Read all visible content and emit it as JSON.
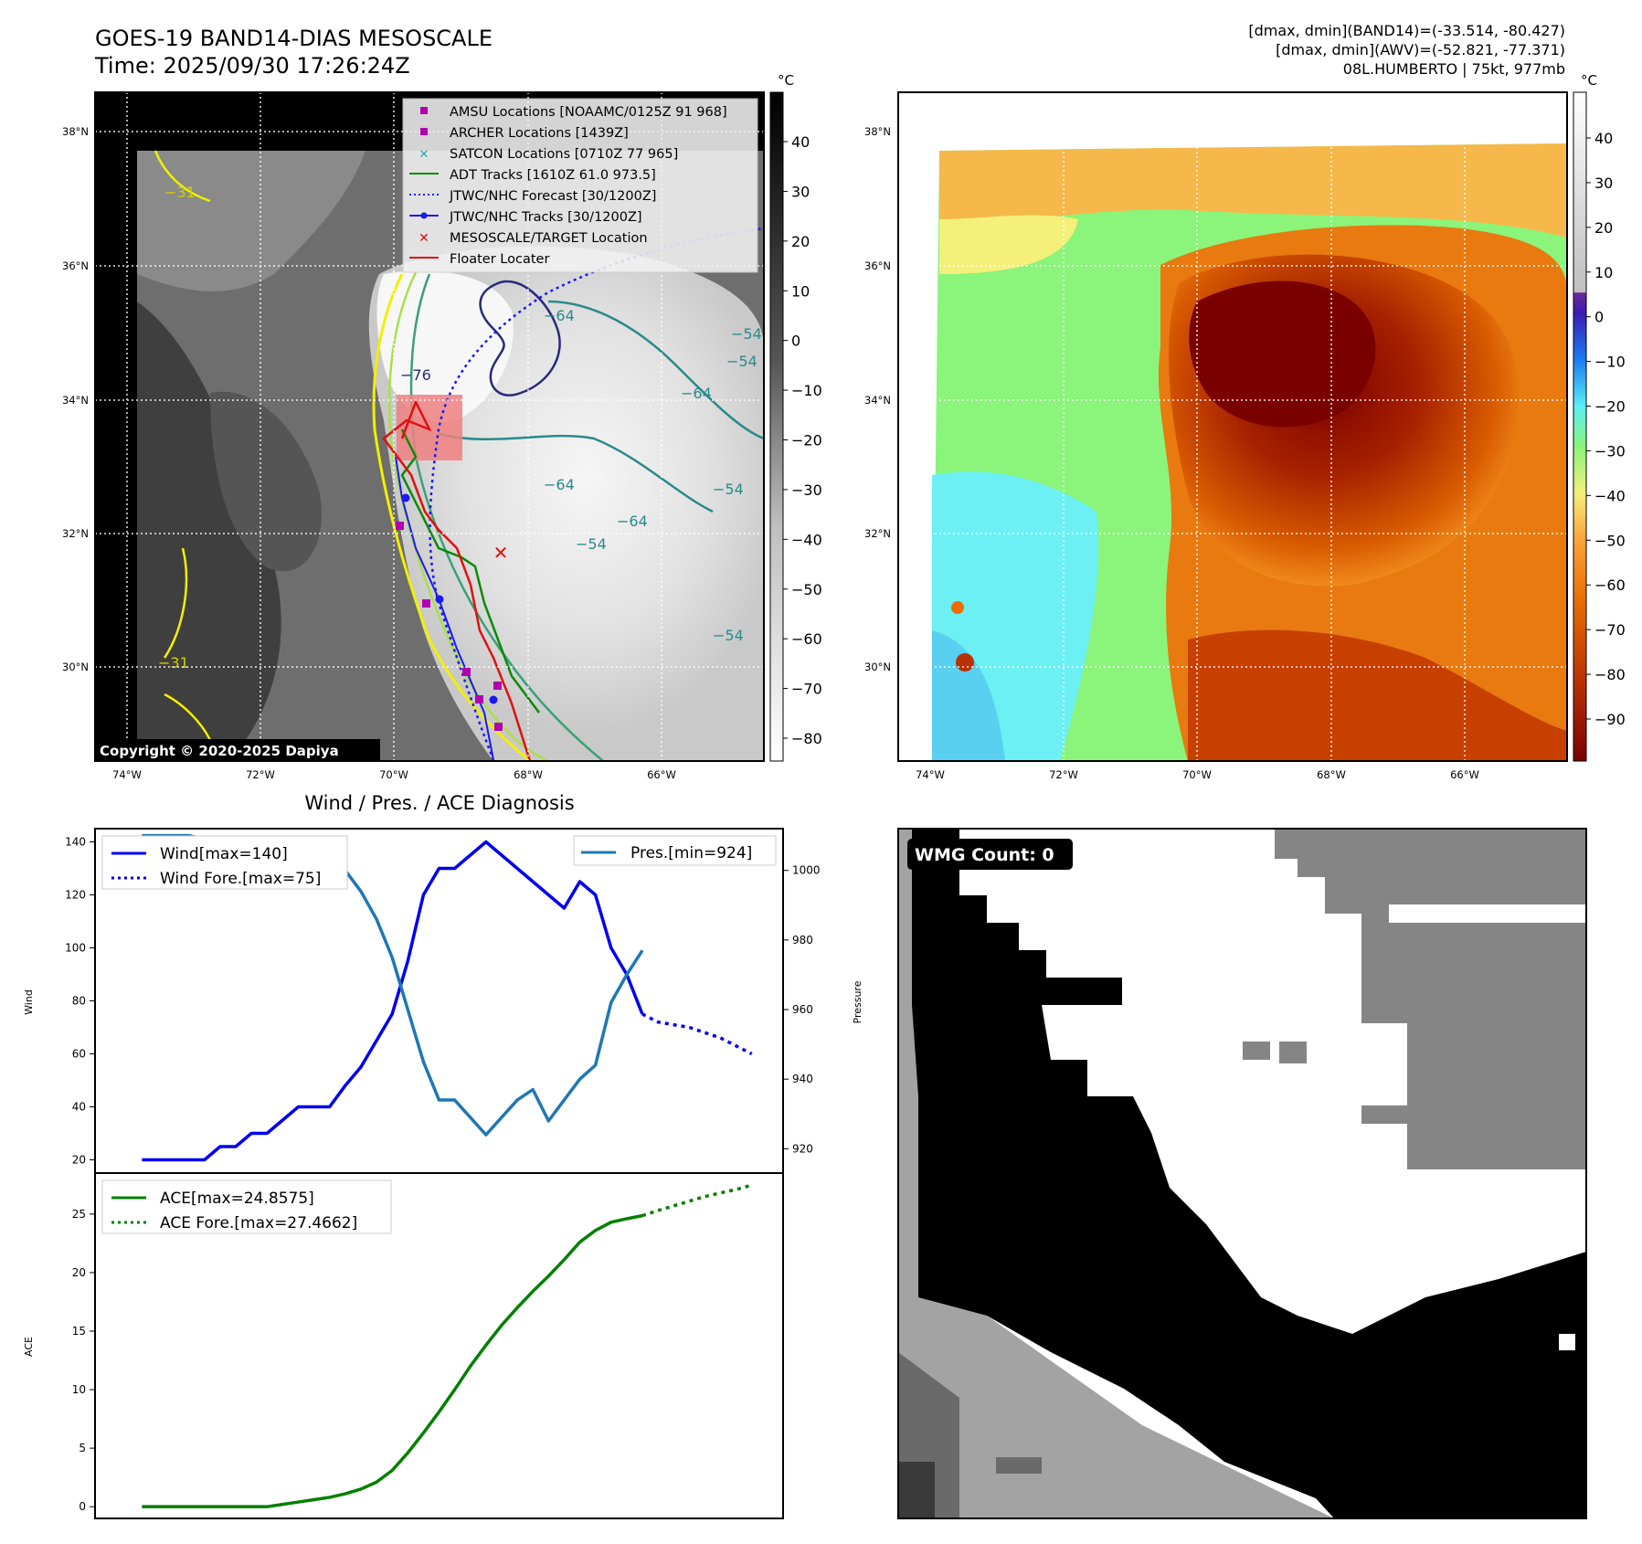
{
  "header": {
    "title": "GOES-19 BAND14-DIAS MESOSCALE",
    "time": "Time: 2025/09/30 17:26:24Z",
    "band14_range": "[dmax, dmin](BAND14)=(-33.514, -80.427)",
    "awv_range": "[dmax, dmin](AWV)=(-52.821, -77.371)",
    "storm": "08L.HUMBERTO | 75kt, 977mb"
  },
  "copyright": "Copyright © 2020-2025 Dapiya",
  "unit": "°C",
  "map": {
    "lon_ticks": [
      "74°W",
      "72°W",
      "70°W",
      "68°W",
      "66°W"
    ],
    "lat_ticks": [
      "38°N",
      "36°N",
      "34°N",
      "32°N",
      "30°N"
    ],
    "contour_labels": [
      "−64",
      "−64",
      "−64",
      "−64",
      "−54",
      "−54",
      "−54",
      "−54",
      "−54",
      "−76",
      "−31",
      "−31"
    ],
    "legend": [
      {
        "label": "AMSU Locations [NOAAMC/0125Z 91 968]"
      },
      {
        "label": "ARCHER Locations [1439Z]"
      },
      {
        "label": "SATCON Locations [0710Z 77 965]"
      },
      {
        "label": "ADT Tracks [1610Z 61.0 973.5]"
      },
      {
        "label": "JTWC/NHC Forecast [30/1200Z]"
      },
      {
        "label": "JTWC/NHC Tracks [30/1200Z]"
      },
      {
        "label": "MESOSCALE/TARGET Location"
      },
      {
        "label": "Floater Locater"
      }
    ],
    "gray_colorbar_ticks": [
      "40",
      "30",
      "20",
      "10",
      "0",
      "−10",
      "−20",
      "−30",
      "−40",
      "−50",
      "−60",
      "−70",
      "−80"
    ],
    "color_colorbar_ticks": [
      "40",
      "30",
      "20",
      "10",
      "0",
      "−10",
      "−20",
      "−30",
      "−40",
      "−50",
      "−60",
      "−70",
      "−80",
      "−90"
    ]
  },
  "chart_data": [
    {
      "type": "line",
      "title": "Wind / Pres. / ACE Diagnosis",
      "ylabel": "Wind",
      "ylabel2": "Pressure",
      "ylim": [
        15,
        145
      ],
      "ylim2": [
        913,
        1012
      ],
      "y_ticks": [
        "20",
        "40",
        "60",
        "80",
        "100",
        "120",
        "140"
      ],
      "y2_ticks": [
        "920",
        "940",
        "960",
        "980",
        "1000"
      ],
      "x": [
        0,
        1,
        2,
        3,
        4,
        5,
        6,
        7,
        8,
        9,
        10,
        11,
        12,
        13,
        14,
        15,
        16,
        17,
        18,
        19,
        20,
        21,
        22,
        23,
        24,
        25,
        26,
        27,
        28,
        29,
        30,
        31,
        32,
        33,
        34,
        35,
        36,
        37,
        38,
        39
      ],
      "series": [
        {
          "name": "Wind[max=140]",
          "color": "#0000ee",
          "style": "solid",
          "x": [
            0,
            1,
            2,
            3,
            4,
            5,
            6,
            7,
            8,
            9,
            10,
            11,
            12,
            13,
            14,
            15,
            16,
            17,
            18,
            19,
            20,
            21,
            22,
            23,
            24,
            25,
            26,
            27,
            28,
            29,
            30,
            31,
            32
          ],
          "values": [
            20,
            20,
            20,
            20,
            20,
            25,
            25,
            30,
            30,
            35,
            40,
            40,
            40,
            48,
            55,
            65,
            75,
            95,
            120,
            130,
            130,
            135,
            140,
            135,
            130,
            125,
            120,
            115,
            125,
            120,
            100,
            90,
            75
          ]
        },
        {
          "name": "Wind Fore.[max=75]",
          "color": "#0000ee",
          "style": "dotted",
          "x": [
            32,
            33,
            34,
            35,
            36,
            37,
            38,
            39
          ],
          "values": [
            75,
            72,
            71,
            70,
            68,
            66,
            63,
            60
          ]
        },
        {
          "name": "Pres.[min=924]",
          "color": "#1f77b4",
          "style": "solid",
          "axis": "right",
          "x": [
            0,
            1,
            2,
            3,
            4,
            5,
            6,
            7,
            8,
            9,
            10,
            11,
            12,
            13,
            14,
            15,
            16,
            17,
            18,
            19,
            20,
            21,
            22,
            23,
            24,
            25,
            26,
            27,
            28,
            29,
            30,
            31,
            32
          ],
          "values": [
            1010,
            1010,
            1010,
            1010,
            1009,
            1009,
            1009,
            1008,
            1008,
            1007,
            1007,
            1006,
            1002,
            1000,
            994,
            986,
            975,
            960,
            945,
            934,
            934,
            929,
            924,
            929,
            934,
            937,
            928,
            934,
            940,
            944,
            962,
            970,
            977
          ]
        }
      ]
    },
    {
      "type": "line",
      "ylabel": "ACE",
      "ylim": [
        -1,
        28.5
      ],
      "y_ticks": [
        "0",
        "5",
        "10",
        "15",
        "20",
        "25"
      ],
      "series": [
        {
          "name": "ACE[max=24.8575]",
          "color": "#008000",
          "style": "solid",
          "x": [
            0,
            1,
            2,
            3,
            4,
            5,
            6,
            7,
            8,
            9,
            10,
            11,
            12,
            13,
            14,
            15,
            16,
            17,
            18,
            19,
            20,
            21,
            22,
            23,
            24,
            25,
            26,
            27,
            28,
            29,
            30,
            31,
            32
          ],
          "values": [
            0,
            0,
            0,
            0,
            0,
            0,
            0,
            0,
            0,
            0.2,
            0.4,
            0.6,
            0.8,
            1.1,
            1.5,
            2.1,
            3.1,
            4.6,
            6.3,
            8.1,
            10,
            12,
            13.8,
            15.5,
            17,
            18.4,
            19.7,
            21.1,
            22.6,
            23.6,
            24.3,
            24.6,
            24.86
          ]
        },
        {
          "name": "ACE Fore.[max=27.4662]",
          "color": "#008000",
          "style": "dotted",
          "x": [
            32,
            33,
            34,
            35,
            36,
            37,
            38,
            39
          ],
          "values": [
            24.86,
            25.3,
            25.7,
            26.1,
            26.5,
            26.8,
            27.1,
            27.47
          ]
        }
      ]
    }
  ],
  "wmg": {
    "label": "WMG Count: 0"
  }
}
